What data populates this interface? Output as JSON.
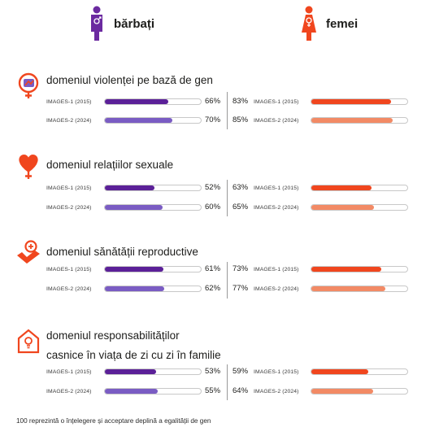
{
  "header": {
    "men_label": "bărbați",
    "women_label": "femei"
  },
  "colors": {
    "men_2015": "#5b2098",
    "men_2024": "#7a5cc3",
    "women_2015": "#f0461e",
    "women_2024": "#f28a65",
    "men_icon": "#6b2aa0",
    "women_icon": "#f0461e",
    "section_icon": "#f0461e"
  },
  "chart_data": {
    "type": "bar",
    "orientation": "horizontal",
    "xlim": [
      0,
      100
    ],
    "series_labels": [
      "IMAGES-1 (2015)",
      "IMAGES-2 (2024)"
    ],
    "groups": [
      {
        "title": "domeniul violenței pe bază de gen",
        "icon": "gender-violence-icon",
        "men": [
          66,
          70
        ],
        "women": [
          83,
          85
        ],
        "men_labels": [
          "66%",
          "70%"
        ],
        "women_labels": [
          "83%",
          "85%"
        ]
      },
      {
        "title": "domeniul relațiilor sexuale",
        "icon": "heart-icon",
        "men": [
          52,
          60
        ],
        "women": [
          63,
          65
        ],
        "men_labels": [
          "52%",
          "60%"
        ],
        "women_labels": [
          "63%",
          "65%"
        ]
      },
      {
        "title": "domeniul sănătății reproductive",
        "icon": "reproductive-health-icon",
        "men": [
          61,
          62
        ],
        "women": [
          73,
          77
        ],
        "men_labels": [
          "61%",
          "62%"
        ],
        "women_labels": [
          "73%",
          "77%"
        ]
      },
      {
        "title_line1": "domeniul responsabilităților",
        "title_line2": "casnice în viața de zi cu zi în familie",
        "icon": "household-icon",
        "men": [
          53,
          55
        ],
        "women": [
          59,
          64
        ],
        "men_labels": [
          "53%",
          "55%"
        ],
        "women_labels": [
          "59%",
          "64%"
        ]
      }
    ]
  },
  "footnote": "100 reprezintă o înțelegere și acceptare deplină a egalității de gen"
}
